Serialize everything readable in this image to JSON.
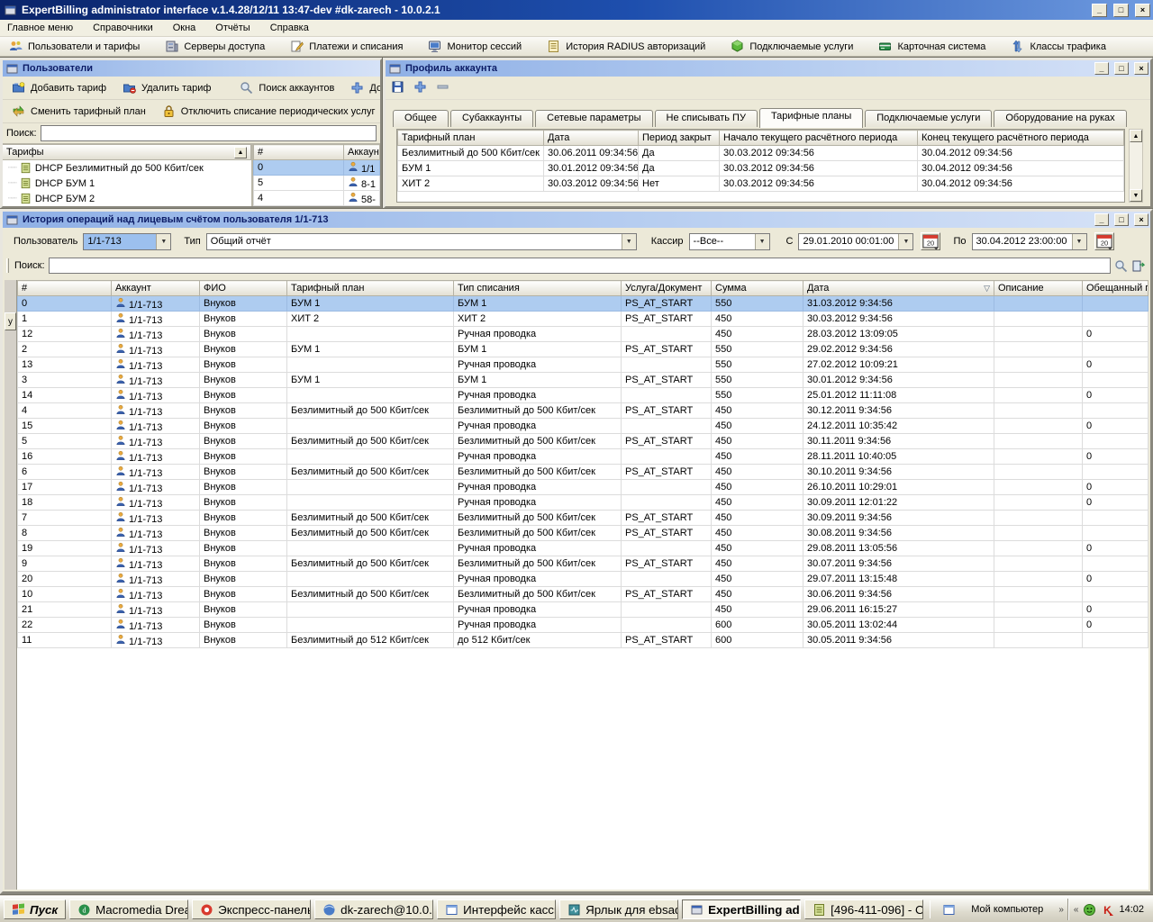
{
  "window": {
    "title": "ExpertBilling administrator interface v.1.4.28/12/11 13:47-dev #dk-zarech - 10.0.2.1",
    "controls": {
      "minimize": "_",
      "maximize": "□",
      "close": "×"
    }
  },
  "menu": {
    "items": [
      "Главное меню",
      "Справочники",
      "Окна",
      "Отчёты",
      "Справка"
    ]
  },
  "toolbar": {
    "items": [
      {
        "label": "Пользователи и тарифы",
        "icon": "users-icon"
      },
      {
        "label": "Серверы доступа",
        "icon": "server-icon"
      },
      {
        "label": "Платежи и списания",
        "icon": "payments-icon"
      },
      {
        "label": "Монитор сессий",
        "icon": "monitor-icon"
      },
      {
        "label": "История RADIUS авторизаций",
        "icon": "radius-icon"
      },
      {
        "label": "Подключаемые услуги",
        "icon": "services-icon"
      },
      {
        "label": "Карточная система",
        "icon": "cards-icon"
      },
      {
        "label": "Классы трафика",
        "icon": "traffic-icon"
      }
    ]
  },
  "users_panel": {
    "title": "Пользователи",
    "buttons_row1": [
      {
        "label": "Добавить тариф",
        "icon": "folder-add-icon"
      },
      {
        "label": "Удалить тариф",
        "icon": "folder-delete-icon"
      },
      {
        "label": "Поиск аккаунтов",
        "icon": "search-icon"
      },
      {
        "label": "Добав",
        "icon": "plus-icon"
      }
    ],
    "buttons_row2": [
      {
        "label": "Сменить тарифный план",
        "icon": "swap-icon"
      },
      {
        "label": "Отключить списание периодических услуг",
        "icon": "lock-icon"
      }
    ],
    "search_label": "Поиск:",
    "tree": {
      "header": "Тарифы",
      "sort_glyph": "▲",
      "items": [
        "DHCP Безлимитный до 500 Кбит/сек",
        "DHCP БУМ 1",
        "DHCP БУМ 2"
      ]
    },
    "accounts": {
      "headers": [
        "#",
        "Аккаунт"
      ],
      "rows": [
        [
          "0",
          "1/1"
        ],
        [
          "5",
          "8-1"
        ],
        [
          "4",
          "58-"
        ]
      ],
      "selected_index": 0
    }
  },
  "profile_panel": {
    "title": "Профиль аккаунта",
    "toolbar_icons": [
      "save-icon",
      "plus-icon",
      "minus-icon"
    ],
    "tabs": [
      "Общее",
      "Субаккаунты",
      "Сетевые параметры",
      "Не списывать ПУ",
      "Тарифные планы",
      "Подключаемые услуги",
      "Оборудование на руках"
    ],
    "active_tab": "Тарифные планы",
    "table": {
      "headers": [
        "Тарифный план",
        "Дата",
        "Период закрыт",
        "Начало текущего расчётного периода",
        "Конец текущего расчётного периода"
      ],
      "rows": [
        [
          "Безлимитный до 500 Кбит/сек",
          "30.06.2011 09:34:56",
          "Да",
          "30.03.2012 09:34:56",
          "30.04.2012 09:34:56"
        ],
        [
          "БУМ 1",
          "30.01.2012 09:34:56",
          "Да",
          "30.03.2012 09:34:56",
          "30.04.2012 09:34:56"
        ],
        [
          "ХИТ 2",
          "30.03.2012 09:34:56",
          "Нет",
          "30.03.2012 09:34:56",
          "30.04.2012 09:34:56"
        ]
      ]
    }
  },
  "history_panel": {
    "title": "История операций над лицевым счётом пользователя 1/1-713",
    "side_label": "у",
    "filters": {
      "user_label": "Пользователь",
      "user_value": "1/1-713",
      "type_label": "Тип",
      "type_value": "Общий отчёт",
      "cashier_label": "Кассир",
      "cashier_value": "--Все--",
      "from_label": "С",
      "from_value": "29.01.2010 00:01:00",
      "to_label": "По",
      "to_value": "30.04.2012 23:00:00",
      "calendar_badge": "20"
    },
    "search_label": "Поиск:",
    "table": {
      "headers": [
        "#",
        "Аккаунт",
        "ФИО",
        "Тарифный план",
        "Тип списания",
        "Услуга/Документ",
        "Сумма",
        "Дата",
        "Описание",
        "Обещанный пл"
      ],
      "sort_column": "Дата",
      "sort_glyph": "▽",
      "selected_index": 0,
      "rows": [
        [
          "0",
          "1/1-713",
          "Внуков",
          "БУМ 1",
          "БУМ 1",
          "PS_AT_START",
          "550",
          "31.03.2012 9:34:56",
          "",
          ""
        ],
        [
          "1",
          "1/1-713",
          "Внуков",
          "ХИТ 2",
          "ХИТ 2",
          "PS_AT_START",
          "450",
          "30.03.2012 9:34:56",
          "",
          ""
        ],
        [
          "12",
          "1/1-713",
          "Внуков",
          "",
          "Ручная проводка",
          "",
          "450",
          "28.03.2012 13:09:05",
          "",
          "0"
        ],
        [
          "2",
          "1/1-713",
          "Внуков",
          "БУМ 1",
          "БУМ 1",
          "PS_AT_START",
          "550",
          "29.02.2012 9:34:56",
          "",
          ""
        ],
        [
          "13",
          "1/1-713",
          "Внуков",
          "",
          "Ручная проводка",
          "",
          "550",
          "27.02.2012 10:09:21",
          "",
          "0"
        ],
        [
          "3",
          "1/1-713",
          "Внуков",
          "БУМ 1",
          "БУМ 1",
          "PS_AT_START",
          "550",
          "30.01.2012 9:34:56",
          "",
          ""
        ],
        [
          "14",
          "1/1-713",
          "Внуков",
          "",
          "Ручная проводка",
          "",
          "550",
          "25.01.2012 11:11:08",
          "",
          "0"
        ],
        [
          "4",
          "1/1-713",
          "Внуков",
          "Безлимитный до 500 Кбит/сек",
          "Безлимитный до 500 Кбит/сек",
          "PS_AT_START",
          "450",
          "30.12.2011 9:34:56",
          "",
          ""
        ],
        [
          "15",
          "1/1-713",
          "Внуков",
          "",
          "Ручная проводка",
          "",
          "450",
          "24.12.2011 10:35:42",
          "",
          "0"
        ],
        [
          "5",
          "1/1-713",
          "Внуков",
          "Безлимитный до 500 Кбит/сек",
          "Безлимитный до 500 Кбит/сек",
          "PS_AT_START",
          "450",
          "30.11.2011 9:34:56",
          "",
          ""
        ],
        [
          "16",
          "1/1-713",
          "Внуков",
          "",
          "Ручная проводка",
          "",
          "450",
          "28.11.2011 10:40:05",
          "",
          "0"
        ],
        [
          "6",
          "1/1-713",
          "Внуков",
          "Безлимитный до 500 Кбит/сек",
          "Безлимитный до 500 Кбит/сек",
          "PS_AT_START",
          "450",
          "30.10.2011 9:34:56",
          "",
          ""
        ],
        [
          "17",
          "1/1-713",
          "Внуков",
          "",
          "Ручная проводка",
          "",
          "450",
          "26.10.2011 10:29:01",
          "",
          "0"
        ],
        [
          "18",
          "1/1-713",
          "Внуков",
          "",
          "Ручная проводка",
          "",
          "450",
          "30.09.2011 12:01:22",
          "",
          "0"
        ],
        [
          "7",
          "1/1-713",
          "Внуков",
          "Безлимитный до 500 Кбит/сек",
          "Безлимитный до 500 Кбит/сек",
          "PS_AT_START",
          "450",
          "30.09.2011 9:34:56",
          "",
          ""
        ],
        [
          "8",
          "1/1-713",
          "Внуков",
          "Безлимитный до 500 Кбит/сек",
          "Безлимитный до 500 Кбит/сек",
          "PS_AT_START",
          "450",
          "30.08.2011 9:34:56",
          "",
          ""
        ],
        [
          "19",
          "1/1-713",
          "Внуков",
          "",
          "Ручная проводка",
          "",
          "450",
          "29.08.2011 13:05:56",
          "",
          "0"
        ],
        [
          "9",
          "1/1-713",
          "Внуков",
          "Безлимитный до 500 Кбит/сек",
          "Безлимитный до 500 Кбит/сек",
          "PS_AT_START",
          "450",
          "30.07.2011 9:34:56",
          "",
          ""
        ],
        [
          "20",
          "1/1-713",
          "Внуков",
          "",
          "Ручная проводка",
          "",
          "450",
          "29.07.2011 13:15:48",
          "",
          "0"
        ],
        [
          "10",
          "1/1-713",
          "Внуков",
          "Безлимитный до 500 Кбит/сек",
          "Безлимитный до 500 Кбит/сек",
          "PS_AT_START",
          "450",
          "30.06.2011 9:34:56",
          "",
          ""
        ],
        [
          "21",
          "1/1-713",
          "Внуков",
          "",
          "Ручная проводка",
          "",
          "450",
          "29.06.2011 16:15:27",
          "",
          "0"
        ],
        [
          "22",
          "1/1-713",
          "Внуков",
          "",
          "Ручная проводка",
          "",
          "600",
          "30.05.2011 13:02:44",
          "",
          "0"
        ],
        [
          "11",
          "1/1-713",
          "Внуков",
          "Безлимитный до 512 Кбит/сек",
          "до 512 Кбит/сек",
          "PS_AT_START",
          "600",
          "30.05.2011 9:34:56",
          "",
          ""
        ]
      ]
    }
  },
  "taskbar": {
    "start_label": "Пуск",
    "buttons": [
      {
        "label": "Macromedia Dream...",
        "icon": "dreamweaver-icon"
      },
      {
        "label": "Экспресс-панель -...",
        "icon": "opera-icon"
      },
      {
        "label": "dk-zarech@10.0.9....",
        "icon": "putty-icon"
      },
      {
        "label": "Интерфейс кассира",
        "icon": "window-icon"
      },
      {
        "label": "Ярлык для ebsadmin",
        "icon": "shortcut-icon"
      },
      {
        "label": "ExpertBilling ad...",
        "icon": "app-icon",
        "active": true
      },
      {
        "label": "[496-411-096] - Ок...",
        "icon": "doc-icon"
      }
    ],
    "deskband_label": "Мой компьютер",
    "deskband_chevron": "»",
    "tray_chevron": "«",
    "clock": "14:02"
  }
}
